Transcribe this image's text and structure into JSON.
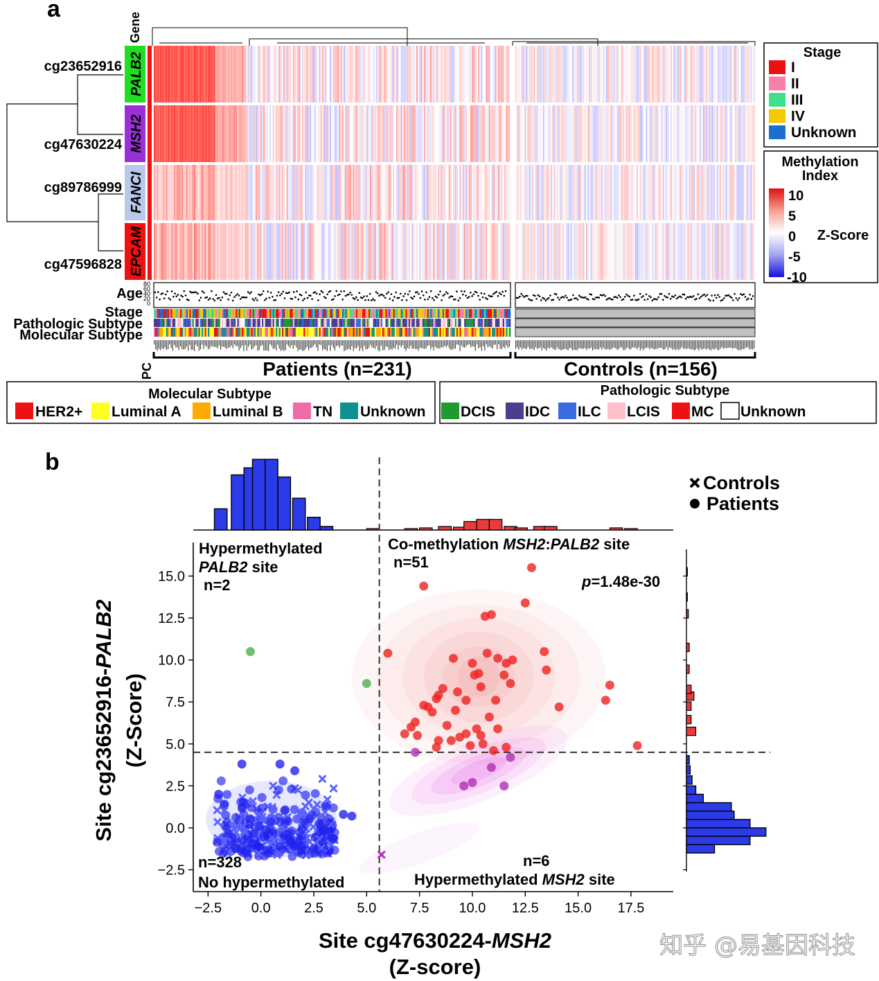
{
  "panel_a": {
    "label": "a",
    "gene_header": "Gene",
    "rows": [
      {
        "site": "cg23652916",
        "gene": "PALB2",
        "gene_color": "#22dd22"
      },
      {
        "site": "cg47630224",
        "gene": "MSH2",
        "gene_color": "#9b30d9"
      },
      {
        "site": "cg89786999",
        "gene": "FANCI",
        "gene_color": "#b8c8e8"
      },
      {
        "site": "cg47596828",
        "gene": "EPCAM",
        "gene_color": "#ee1111"
      }
    ],
    "track_labels": [
      "Age",
      "Stage",
      "Pathologic Subtype",
      "Molecular Subtype"
    ],
    "age_ticks": [
      "80",
      "60",
      "40",
      "20",
      "0"
    ],
    "pc_label": "PC",
    "group_patients": "Patients (n=231)",
    "group_controls": "Controls (n=156)",
    "stage_legend": {
      "title": "Stage",
      "items": [
        {
          "label": "I",
          "color": "#ee1111"
        },
        {
          "label": "II",
          "color": "#f77fa8"
        },
        {
          "label": "III",
          "color": "#40e08a"
        },
        {
          "label": "IV",
          "color": "#f5c800"
        },
        {
          "label": "Unknown",
          "color": "#1a6fd0"
        }
      ]
    },
    "colorbar": {
      "title_line1": "Methylation",
      "title_line2": "Index",
      "ticks": [
        "10",
        "5",
        "0",
        "-5",
        "-10"
      ],
      "unit": "Z-Score"
    },
    "molecular_legend": {
      "title": "Molecular Subtype",
      "items": [
        {
          "label": "HER2+",
          "color": "#ee1111"
        },
        {
          "label": "Luminal A",
          "color": "#ffff22"
        },
        {
          "label": "Luminal B",
          "color": "#ffaa00"
        },
        {
          "label": "TN",
          "color": "#ee6aa8"
        },
        {
          "label": "Unknown",
          "color": "#109090"
        }
      ]
    },
    "pathologic_legend": {
      "title": "Pathologic Subtype",
      "items": [
        {
          "label": "DCIS",
          "color": "#1f9a2e"
        },
        {
          "label": "IDC",
          "color": "#4a3f8f"
        },
        {
          "label": "ILC",
          "color": "#3a6be0"
        },
        {
          "label": "LCIS",
          "color": "#ffc0cb"
        },
        {
          "label": "MC",
          "color": "#ee1111"
        },
        {
          "label": "Unknown",
          "color": "#ffffff"
        }
      ]
    }
  },
  "panel_b": {
    "label": "b",
    "quadrant_top_left_line1": "Hypermethylated",
    "quadrant_top_left_gene": "PALB2",
    "quadrant_top_left_suffix": " site",
    "quadrant_top_left_n": "n=2",
    "quadrant_top_right_prefix": "Co-methylation ",
    "quadrant_top_right_gene1": "MSH2",
    "quadrant_top_right_sep": ":",
    "quadrant_top_right_gene2": "PALB2",
    "quadrant_top_right_suffix": " site",
    "quadrant_top_right_n": "n=51",
    "p_symbol": "p",
    "p_value": "=1.48e-30",
    "quadrant_bottom_left_n": "n=328",
    "quadrant_bottom_left_label": "No hypermethylated",
    "quadrant_bottom_right_n": "n=6",
    "quadrant_bottom_right_prefix": "Hypermethylated ",
    "quadrant_bottom_right_gene": "MSH2",
    "quadrant_bottom_right_suffix": " site",
    "legend_controls": "Controls",
    "legend_patients": "Patients",
    "xlabel_prefix": "Site cg47630224-",
    "xlabel_gene": "MSH2",
    "xlabel_line2": "(Z-score)",
    "ylabel_prefix": "Site cg23652916-",
    "ylabel_gene": "PALB2",
    "ylabel_line2": "(Z-Score)",
    "watermark": "知乎 @易基因科技"
  },
  "chart_data": {
    "type": "scatter",
    "xlim": [
      -3.2,
      19.5
    ],
    "ylim": [
      -3.8,
      17.0
    ],
    "x_ticks": [
      -2.5,
      0.0,
      2.5,
      5.0,
      7.5,
      10.0,
      12.5,
      15.0,
      17.5
    ],
    "y_ticks": [
      -2.5,
      0.0,
      2.5,
      5.0,
      7.5,
      10.0,
      12.5,
      15.0
    ],
    "x_threshold": 5.6,
    "y_threshold": 4.5,
    "colors": {
      "hyper_both": "#ee2222",
      "hyper_palb2": "#4caf50",
      "hyper_msh2": "#b030b0",
      "none": "#2222ee"
    },
    "series": [
      {
        "name": "Co-methylation",
        "marker": "circle",
        "color": "#ee2222",
        "points": [
          [
            7.7,
            14.4
          ],
          [
            12.8,
            15.5
          ],
          [
            12.5,
            13.4
          ],
          [
            10.9,
            12.7
          ],
          [
            10.6,
            12.6
          ],
          [
            6.0,
            10.4
          ],
          [
            9.1,
            10.1
          ],
          [
            10.7,
            10.4
          ],
          [
            11.2,
            10.1
          ],
          [
            11.9,
            10.0
          ],
          [
            11.6,
            9.8
          ],
          [
            13.4,
            10.5
          ],
          [
            10.0,
            9.8
          ],
          [
            10.3,
            9.2
          ],
          [
            10.1,
            9.1
          ],
          [
            11.5,
            9.1
          ],
          [
            13.5,
            9.4
          ],
          [
            11.8,
            8.6
          ],
          [
            8.6,
            8.3
          ],
          [
            9.3,
            8.1
          ],
          [
            10.4,
            8.4
          ],
          [
            16.5,
            8.5
          ],
          [
            8.4,
            7.9
          ],
          [
            8.3,
            7.7
          ],
          [
            9.7,
            7.6
          ],
          [
            11.1,
            7.6
          ],
          [
            16.3,
            7.6
          ],
          [
            7.9,
            7.2
          ],
          [
            7.7,
            7.3
          ],
          [
            8.1,
            6.9
          ],
          [
            9.2,
            7.0
          ],
          [
            10.8,
            6.6
          ],
          [
            14.1,
            7.2
          ],
          [
            7.3,
            6.3
          ],
          [
            7.1,
            6.0
          ],
          [
            8.8,
            6.1
          ],
          [
            10.2,
            5.9
          ],
          [
            11.2,
            5.9
          ],
          [
            6.8,
            5.6
          ],
          [
            7.4,
            5.5
          ],
          [
            9.4,
            5.4
          ],
          [
            10.4,
            5.5
          ],
          [
            9.0,
            5.2
          ],
          [
            8.3,
            4.8
          ],
          [
            9.9,
            4.9
          ],
          [
            11.0,
            4.6
          ],
          [
            17.8,
            4.9
          ],
          [
            8.4,
            5.2
          ],
          [
            10.5,
            5.0
          ],
          [
            11.6,
            4.8
          ],
          [
            9.7,
            5.6
          ]
        ]
      },
      {
        "name": "Hypermethylated PALB2",
        "marker": "circle",
        "color": "#4caf50",
        "points": [
          [
            -0.5,
            10.5
          ],
          [
            5.0,
            8.6
          ]
        ]
      },
      {
        "name": "Hypermethylated MSH2",
        "marker": "circle",
        "color": "#b030b0",
        "points": [
          [
            7.3,
            4.5
          ],
          [
            11.8,
            4.2
          ],
          [
            10.9,
            3.6
          ],
          [
            9.6,
            2.5
          ],
          [
            10.0,
            2.7
          ],
          [
            11.5,
            2.5
          ]
        ]
      },
      {
        "name": "Controls (hypermethylated MSH2)",
        "marker": "x",
        "color": "#b030b0",
        "points": [
          [
            5.7,
            -1.6
          ]
        ]
      },
      {
        "name": "No hypermethylated",
        "marker": "mixed",
        "color": "#2222ee",
        "points": [
          [
            3.9,
            0.8
          ],
          [
            4.3,
            0.7
          ],
          [
            1.6,
            3.4
          ],
          [
            0.9,
            3.8
          ],
          [
            -0.9,
            3.8
          ],
          [
            -2.0,
            2.0
          ]
        ]
      }
    ],
    "top_histogram": {
      "bins_blue": [
        [
          -2.2,
          0.3
        ],
        [
          -1.4,
          0.78
        ],
        [
          -0.8,
          0.88
        ],
        [
          -0.4,
          1.0
        ],
        [
          0.2,
          1.0
        ],
        [
          0.8,
          0.75
        ],
        [
          1.5,
          0.45
        ],
        [
          2.2,
          0.18
        ],
        [
          2.8,
          0.05
        ]
      ],
      "bins_red": [
        [
          5.0,
          0.02
        ],
        [
          6.8,
          0.02
        ],
        [
          7.5,
          0.03
        ],
        [
          8.4,
          0.05
        ],
        [
          9.1,
          0.04
        ],
        [
          9.6,
          0.12
        ],
        [
          10.2,
          0.15
        ],
        [
          10.8,
          0.15
        ],
        [
          11.5,
          0.05
        ],
        [
          12.0,
          0.03
        ],
        [
          12.9,
          0.05
        ],
        [
          13.4,
          0.05
        ],
        [
          16.5,
          0.03
        ],
        [
          17.2,
          0.02
        ]
      ]
    },
    "right_histogram": {
      "bins_blue": [
        [
          -1.5,
          0.3
        ],
        [
          -1.0,
          0.68
        ],
        [
          -0.5,
          0.85
        ],
        [
          0.0,
          0.68
        ],
        [
          0.5,
          0.51
        ],
        [
          1.0,
          0.48
        ],
        [
          1.5,
          0.18
        ],
        [
          2.0,
          0.1
        ],
        [
          2.6,
          0.06
        ],
        [
          3.2,
          0.04
        ],
        [
          3.8,
          0.03
        ]
      ],
      "bins_red": [
        [
          5.5,
          0.1
        ],
        [
          6.2,
          0.05
        ],
        [
          7.0,
          0.05
        ],
        [
          7.6,
          0.08
        ],
        [
          8.0,
          0.05
        ],
        [
          9.2,
          0.03
        ],
        [
          10.5,
          0.03
        ],
        [
          12.5,
          0.02
        ],
        [
          13.5,
          0.01
        ],
        [
          15.0,
          0.01
        ]
      ]
    }
  }
}
